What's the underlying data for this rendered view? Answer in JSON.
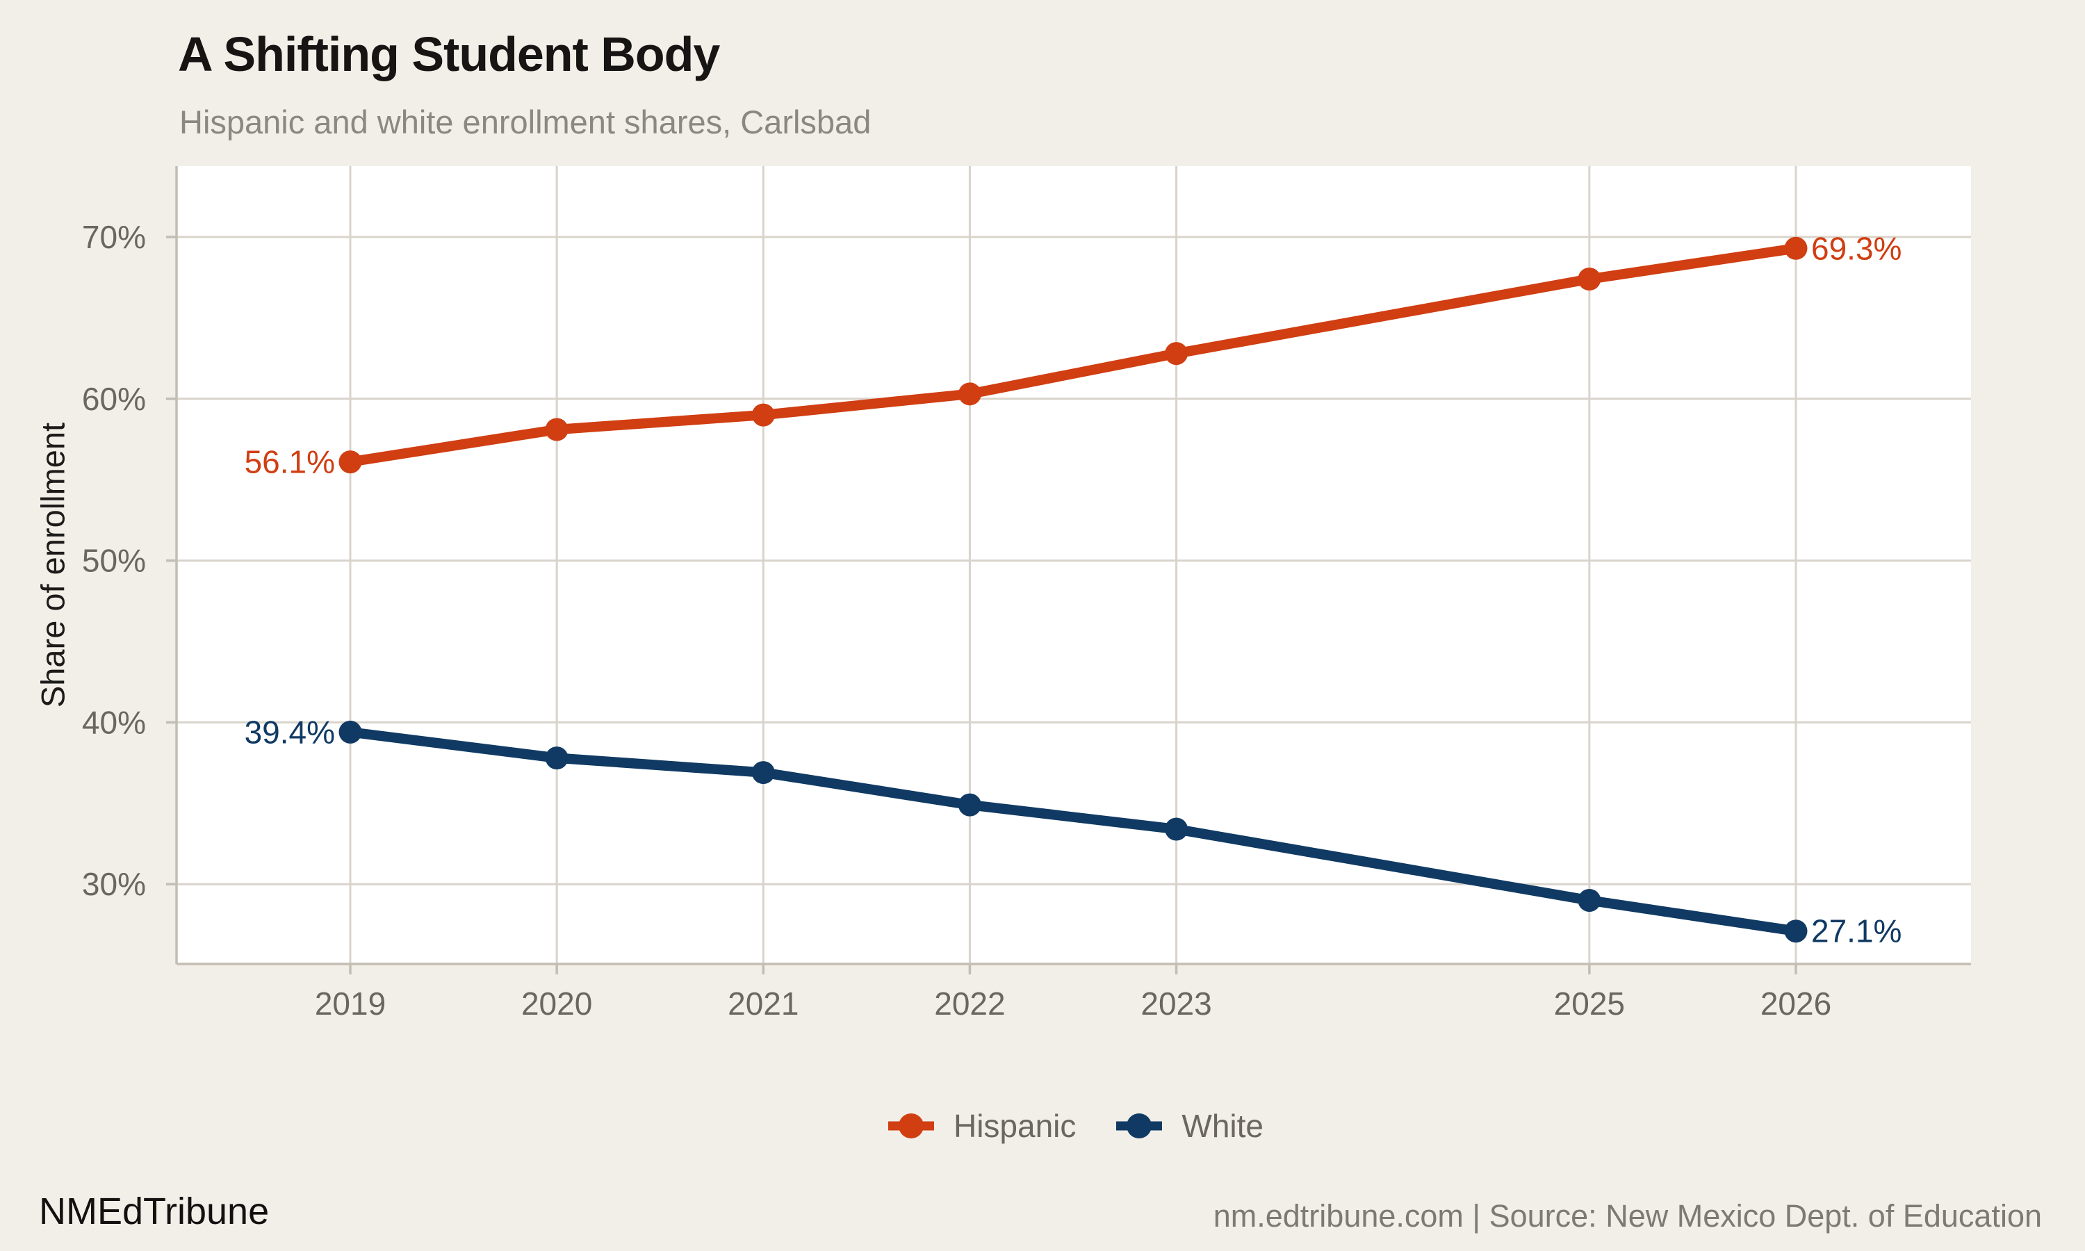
{
  "page": {
    "title": "A Shifting Student Body",
    "subtitle": "Hispanic and white enrollment shares, Carlsbad"
  },
  "footer": {
    "brand": "NMEdTribune",
    "source": "nm.edtribune.com | Source: New Mexico Dept. of Education"
  },
  "colors": {
    "background": "#f2efe8",
    "plot_background": "#ffffff",
    "gridline": "#d9d4cb",
    "axis": "#c3bdb3",
    "tick_text": "#6b665f",
    "title_text": "#161514",
    "subtitle_text": "#8c8781",
    "source_text": "#7e7973",
    "hispanic": "#d03e12",
    "white": "#103a63"
  },
  "chart_data": {
    "type": "line",
    "title": "A Shifting Student Body",
    "subtitle": "Hispanic and white enrollment shares, Carlsbad",
    "xlabel": "",
    "ylabel": "Share of enrollment",
    "x": [
      2019,
      2020,
      2021,
      2022,
      2023,
      2025,
      2026
    ],
    "x_tick_labels": [
      "2019",
      "2020",
      "2021",
      "2022",
      "2023",
      "2025",
      "2026"
    ],
    "y_ticks": [
      30,
      40,
      50,
      60,
      70
    ],
    "y_tick_format": "{v}%",
    "ylim": [
      25,
      74.4
    ],
    "xlim": [
      2018.16,
      2026.85
    ],
    "grid": true,
    "legend": {
      "position": "bottom",
      "entries": [
        "Hispanic",
        "White"
      ]
    },
    "series": [
      {
        "name": "Hispanic",
        "color": "#d03e12",
        "values": [
          56.1,
          58.1,
          59.0,
          60.3,
          62.8,
          67.4,
          69.3
        ],
        "endpoint_labels": {
          "first": "56.1%",
          "last": "69.3%"
        }
      },
      {
        "name": "White",
        "color": "#103a63",
        "values": [
          39.4,
          37.8,
          36.9,
          34.9,
          33.4,
          29.0,
          27.1
        ],
        "endpoint_labels": {
          "first": "39.4%",
          "last": "27.1%"
        }
      }
    ]
  }
}
